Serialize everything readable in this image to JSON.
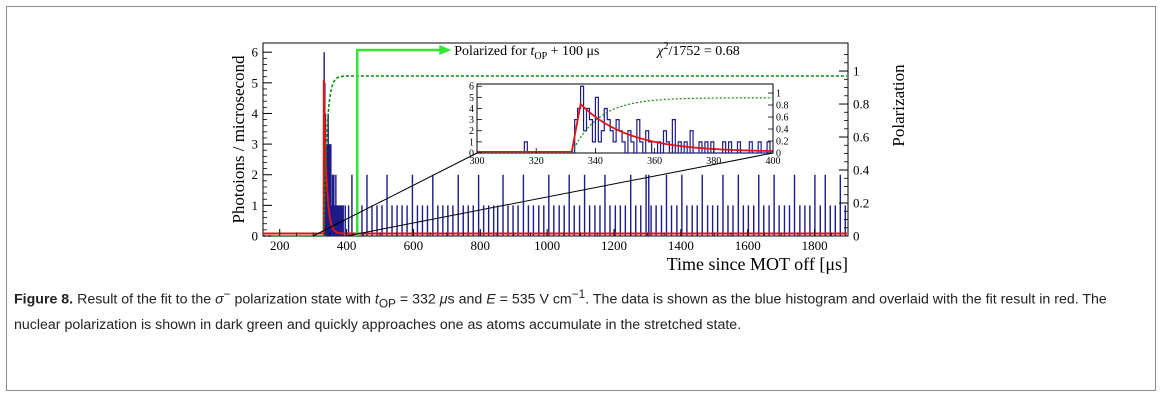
{
  "caption": {
    "label": "Figure 8.",
    "text_1": " Result of the fit to the ",
    "sigma": "σ",
    "sup_minus": "−",
    "text_2": " polarization state with ",
    "t": "t",
    "op_sub": "OP",
    "eq_1": " = 332 ",
    "mu": "μ",
    "unit_s": "s and ",
    "E": "E",
    "eq_2": " = 535 V cm",
    "sup_m1": "−1",
    "text_3": ". The data is shown as the blue histogram and overlaid with the fit result in red. The nuclear polarization is shown in dark green and quickly approaches one as atoms accumulate in the stretched state."
  },
  "chart_data": [
    {
      "type": "bar",
      "role": "main",
      "xlabel": "Time since MOT off [μs]",
      "ylabel": "Photoions / microsecond",
      "y2label": "Polarization",
      "xlim": [
        150,
        1900
      ],
      "ylim": [
        0,
        6.3
      ],
      "y2lim": [
        0,
        1.17
      ],
      "xticks": [
        200,
        400,
        600,
        800,
        1000,
        1200,
        1400,
        1600,
        1800
      ],
      "yticks": [
        0,
        1,
        2,
        3,
        4,
        5,
        6
      ],
      "y2ticks": [
        0,
        0.2,
        0.4,
        0.6,
        0.8,
        1
      ],
      "annotation": {
        "text_prefix": "Polarized for ",
        "text_t": "t",
        "text_sub": "OP",
        "text_mid": " + 100 μs",
        "chi_text": "χ",
        "chi_sup": "2",
        "chi_rest": "/1752 = 0.68",
        "arrow_x": 432
      },
      "histogram": {
        "bin_width": 1,
        "counts": {
          "333": 6,
          "335": 5,
          "337": 4,
          "338": 2,
          "340": 3,
          "342": 3,
          "343": 2,
          "345": 4,
          "347": 2,
          "349": 3,
          "351": 2,
          "353": 3,
          "356": 1,
          "358": 2,
          "360": 1,
          "362": 2,
          "365": 1,
          "368": 2,
          "371": 1,
          "374": 1,
          "378": 1,
          "382": 1,
          "386": 1,
          "390": 1,
          "396": 1,
          "406": 1,
          "416": 2,
          "431": 1,
          "446": 1,
          "461": 2,
          "476": 1,
          "491": 1,
          "506": 1,
          "521": 2,
          "536": 1,
          "551": 1,
          "566": 1,
          "581": 1,
          "597": 2,
          "612": 1,
          "627": 1,
          "642": 1,
          "658": 2,
          "673": 1,
          "688": 1,
          "703": 1,
          "718": 1,
          "734": 2,
          "749": 1,
          "764": 1,
          "779": 1,
          "795": 2,
          "810": 1,
          "825": 1,
          "840": 1,
          "852": 1,
          "868": 2,
          "883": 1,
          "898": 1,
          "913": 1,
          "929": 2,
          "944": 1,
          "959": 1,
          "975": 1,
          "990": 1,
          "1005": 2,
          "1020": 1,
          "1036": 1,
          "1051": 1,
          "1066": 2,
          "1081": 1,
          "1097": 1,
          "1112": 2,
          "1127": 1,
          "1143": 1,
          "1158": 1,
          "1173": 2,
          "1188": 1,
          "1204": 1,
          "1219": 1,
          "1234": 1,
          "1250": 2,
          "1265": 1,
          "1280": 1,
          "1296": 2,
          "1304": 2,
          "1311": 1,
          "1326": 1,
          "1342": 1,
          "1357": 2,
          "1372": 1,
          "1388": 1,
          "1403": 2,
          "1418": 1,
          "1434": 1,
          "1449": 1,
          "1464": 2,
          "1480": 1,
          "1495": 1,
          "1510": 1,
          "1526": 2,
          "1541": 1,
          "1556": 1,
          "1572": 2,
          "1587": 1,
          "1602": 1,
          "1618": 1,
          "1633": 2,
          "1648": 1,
          "1664": 1,
          "1679": 2,
          "1694": 1,
          "1710": 1,
          "1725": 1,
          "1740": 2,
          "1756": 1,
          "1771": 1,
          "1786": 1,
          "1801": 2,
          "1817": 1,
          "1832": 2,
          "1847": 1,
          "1862": 1,
          "1877": 2,
          "1892": 1
        }
      },
      "fit": {
        "t0": 332,
        "peak": 5.1,
        "tau": 8,
        "background": 0.08
      },
      "polarization": {
        "t0": 332,
        "tau": 9,
        "max": 0.97
      }
    },
    {
      "type": "bar",
      "role": "inset",
      "xlim": [
        300,
        400
      ],
      "ylim": [
        0,
        6.2
      ],
      "y2lim": [
        0,
        1.15
      ],
      "xticks": [
        300,
        320,
        340,
        360,
        380,
        400
      ],
      "yticks": [
        0,
        1,
        2,
        3,
        4,
        5,
        6
      ],
      "y2ticks": [
        0,
        0.2,
        0.4,
        0.6,
        0.8,
        1
      ],
      "histogram": {
        "bin_width": 1,
        "counts": {
          "316": 1,
          "333": 3,
          "334": 4,
          "335": 6,
          "336": 2,
          "337": 4,
          "338": 3,
          "339": 1,
          "340": 5,
          "341": 1,
          "342": 2,
          "343": 4,
          "344": 3,
          "345": 2,
          "346": 1,
          "347": 3,
          "348": 2,
          "349": 1,
          "351": 2,
          "352": 1,
          "354": 3,
          "355": 1,
          "357": 2,
          "358": 1,
          "361": 1,
          "363": 2,
          "364": 1,
          "366": 3,
          "368": 1,
          "370": 1,
          "372": 2,
          "375": 1,
          "377": 1,
          "379": 1,
          "383": 1,
          "385": 1,
          "388": 1,
          "392": 1,
          "395": 1,
          "398": 1
        }
      },
      "fit": {
        "t0": 332,
        "peak": 4.4,
        "tau": 16,
        "background": 0.1
      },
      "polarization": {
        "t0": 332,
        "tau": 9,
        "max": 0.92
      }
    }
  ]
}
